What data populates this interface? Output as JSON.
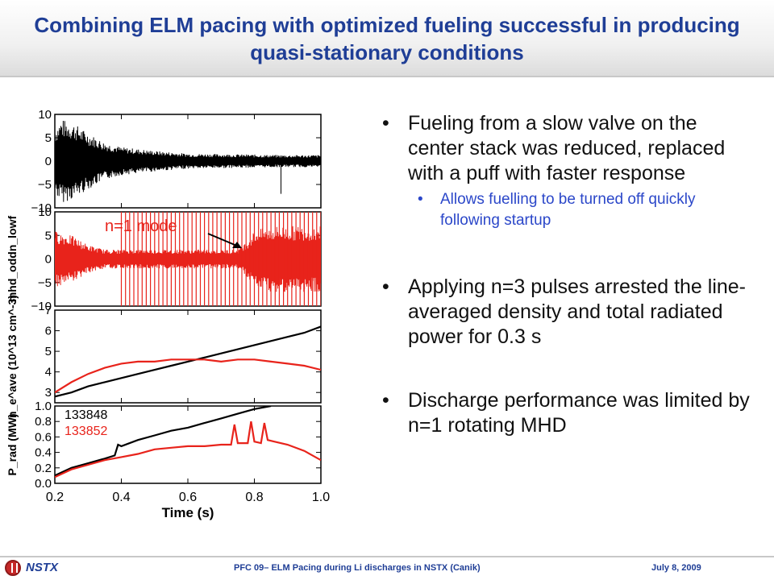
{
  "slide": {
    "title": "Combining ELM pacing with optimized fueling successful in producing quasi-stationary conditions",
    "annotation": "n=1 mode",
    "bullets": [
      {
        "text": "Fueling from a slow valve on the center stack was reduced, replaced with a puff with faster response",
        "sub": "Allows fuelling to be turned off quickly following startup"
      },
      {
        "text": "Applying n=3 pulses arrested the line-averaged density and total radiated power for 0.3 s"
      },
      {
        "text": "Discharge performance was limited by n=1 rotating MHD"
      }
    ],
    "bullet_glyph": "•"
  },
  "footer": {
    "logo_text": "NSTX",
    "center": "PFC 09– ELM Pacing during Li discharges in NSTX (Canik)",
    "date": "July 8, 2009"
  },
  "colors": {
    "title": "#1f3e96",
    "shot_black": "#000000",
    "shot_red": "#e8231b",
    "sub_bullet": "#2b47c9"
  },
  "chart_data": {
    "type": "line",
    "xlabel": "Time (s)",
    "xlim": [
      0.2,
      1.0
    ],
    "x_ticks": [
      "0.2",
      "0.4",
      "0.6",
      "0.8",
      "1.0"
    ],
    "legend": [
      {
        "name": "133848",
        "color": "#000000"
      },
      {
        "name": "133852",
        "color": "#e8231b"
      }
    ],
    "panels": [
      {
        "id": "mhd-black",
        "ylabel": "",
        "ylim": [
          -10,
          10
        ],
        "y_ticks": [
          "10",
          "5",
          "0",
          "−5",
          "−10"
        ],
        "tick_values": [
          10,
          5,
          0,
          -5,
          -10
        ],
        "series": [
          {
            "kind": "oscillation",
            "color": "#000000",
            "envelope": [
              [
                0.2,
                7
              ],
              [
                0.22,
                9
              ],
              [
                0.26,
                8
              ],
              [
                0.3,
                6
              ],
              [
                0.35,
                4
              ],
              [
                0.4,
                3
              ],
              [
                0.5,
                2.2
              ],
              [
                0.6,
                1.6
              ],
              [
                0.8,
                1.4
              ],
              [
                0.87,
                1.3
              ],
              [
                1.0,
                1.3
              ]
            ],
            "spikes": [
              [
                0.88,
                -7
              ]
            ]
          }
        ]
      },
      {
        "id": "mhd-red",
        "ylabel": "mhd_oddn_lowf",
        "ylim": [
          -10,
          10
        ],
        "y_ticks": [
          "10",
          "5",
          "0",
          "−5",
          "−10"
        ],
        "tick_values": [
          10,
          5,
          0,
          -5,
          -10
        ],
        "series": [
          {
            "kind": "oscillation",
            "color": "#e8231b",
            "envelope": [
              [
                0.2,
                6
              ],
              [
                0.25,
                5
              ],
              [
                0.3,
                3
              ],
              [
                0.35,
                2
              ],
              [
                0.4,
                2
              ],
              [
                0.75,
                2
              ],
              [
                0.78,
                4
              ],
              [
                0.8,
                6
              ],
              [
                0.85,
                7
              ],
              [
                1.0,
                7
              ]
            ],
            "pulse_train": {
              "start": 0.4,
              "end": 1.0,
              "period": 0.0125,
              "low": -10,
              "high": 10
            }
          }
        ]
      },
      {
        "id": "density",
        "ylabel": "n_e^ave (10^13 cm^-3)",
        "ylim": [
          2.5,
          7
        ],
        "y_ticks": [
          "7",
          "6",
          "5",
          "4",
          "3"
        ],
        "tick_values": [
          7,
          6,
          5,
          4,
          3
        ],
        "series": [
          {
            "name": "133848",
            "color": "#000000",
            "x": [
              0.2,
              0.25,
              0.3,
              0.35,
              0.4,
              0.45,
              0.5,
              0.55,
              0.6,
              0.65,
              0.7,
              0.75,
              0.8,
              0.85,
              0.9,
              0.95,
              1.0
            ],
            "y": [
              2.8,
              3.0,
              3.3,
              3.5,
              3.7,
              3.9,
              4.1,
              4.3,
              4.5,
              4.7,
              4.9,
              5.1,
              5.3,
              5.5,
              5.7,
              5.9,
              6.2
            ]
          },
          {
            "name": "133852",
            "color": "#e8231b",
            "x": [
              0.2,
              0.25,
              0.3,
              0.35,
              0.4,
              0.45,
              0.5,
              0.55,
              0.6,
              0.65,
              0.7,
              0.75,
              0.8,
              0.85,
              0.9,
              0.95,
              1.0
            ],
            "y": [
              3.0,
              3.5,
              3.9,
              4.2,
              4.4,
              4.5,
              4.5,
              4.6,
              4.6,
              4.6,
              4.5,
              4.6,
              4.6,
              4.5,
              4.4,
              4.3,
              4.1
            ]
          }
        ]
      },
      {
        "id": "prad",
        "ylabel": "P_rad (MW)",
        "ylim": [
          0,
          1.0
        ],
        "y_ticks": [
          "1.0",
          "0.8",
          "0.6",
          "0.4",
          "0.2",
          "0.0"
        ],
        "tick_values": [
          1.0,
          0.8,
          0.6,
          0.4,
          0.2,
          0.0
        ],
        "series": [
          {
            "name": "133848",
            "color": "#000000",
            "x": [
              0.2,
              0.25,
              0.3,
              0.35,
              0.38,
              0.39,
              0.4,
              0.45,
              0.5,
              0.55,
              0.6,
              0.65,
              0.7,
              0.75,
              0.8,
              0.85
            ],
            "y": [
              0.1,
              0.2,
              0.26,
              0.32,
              0.36,
              0.5,
              0.48,
              0.56,
              0.62,
              0.68,
              0.72,
              0.78,
              0.84,
              0.9,
              0.96,
              1.0
            ]
          },
          {
            "name": "133852",
            "color": "#e8231b",
            "x": [
              0.2,
              0.25,
              0.3,
              0.35,
              0.4,
              0.45,
              0.5,
              0.55,
              0.6,
              0.65,
              0.7,
              0.73,
              0.74,
              0.75,
              0.78,
              0.79,
              0.8,
              0.82,
              0.83,
              0.84,
              0.86,
              0.9,
              0.95,
              1.0
            ],
            "y": [
              0.08,
              0.18,
              0.24,
              0.3,
              0.34,
              0.38,
              0.44,
              0.46,
              0.48,
              0.48,
              0.5,
              0.5,
              0.76,
              0.52,
              0.52,
              0.8,
              0.54,
              0.52,
              0.78,
              0.56,
              0.54,
              0.5,
              0.42,
              0.3
            ]
          }
        ]
      }
    ]
  }
}
